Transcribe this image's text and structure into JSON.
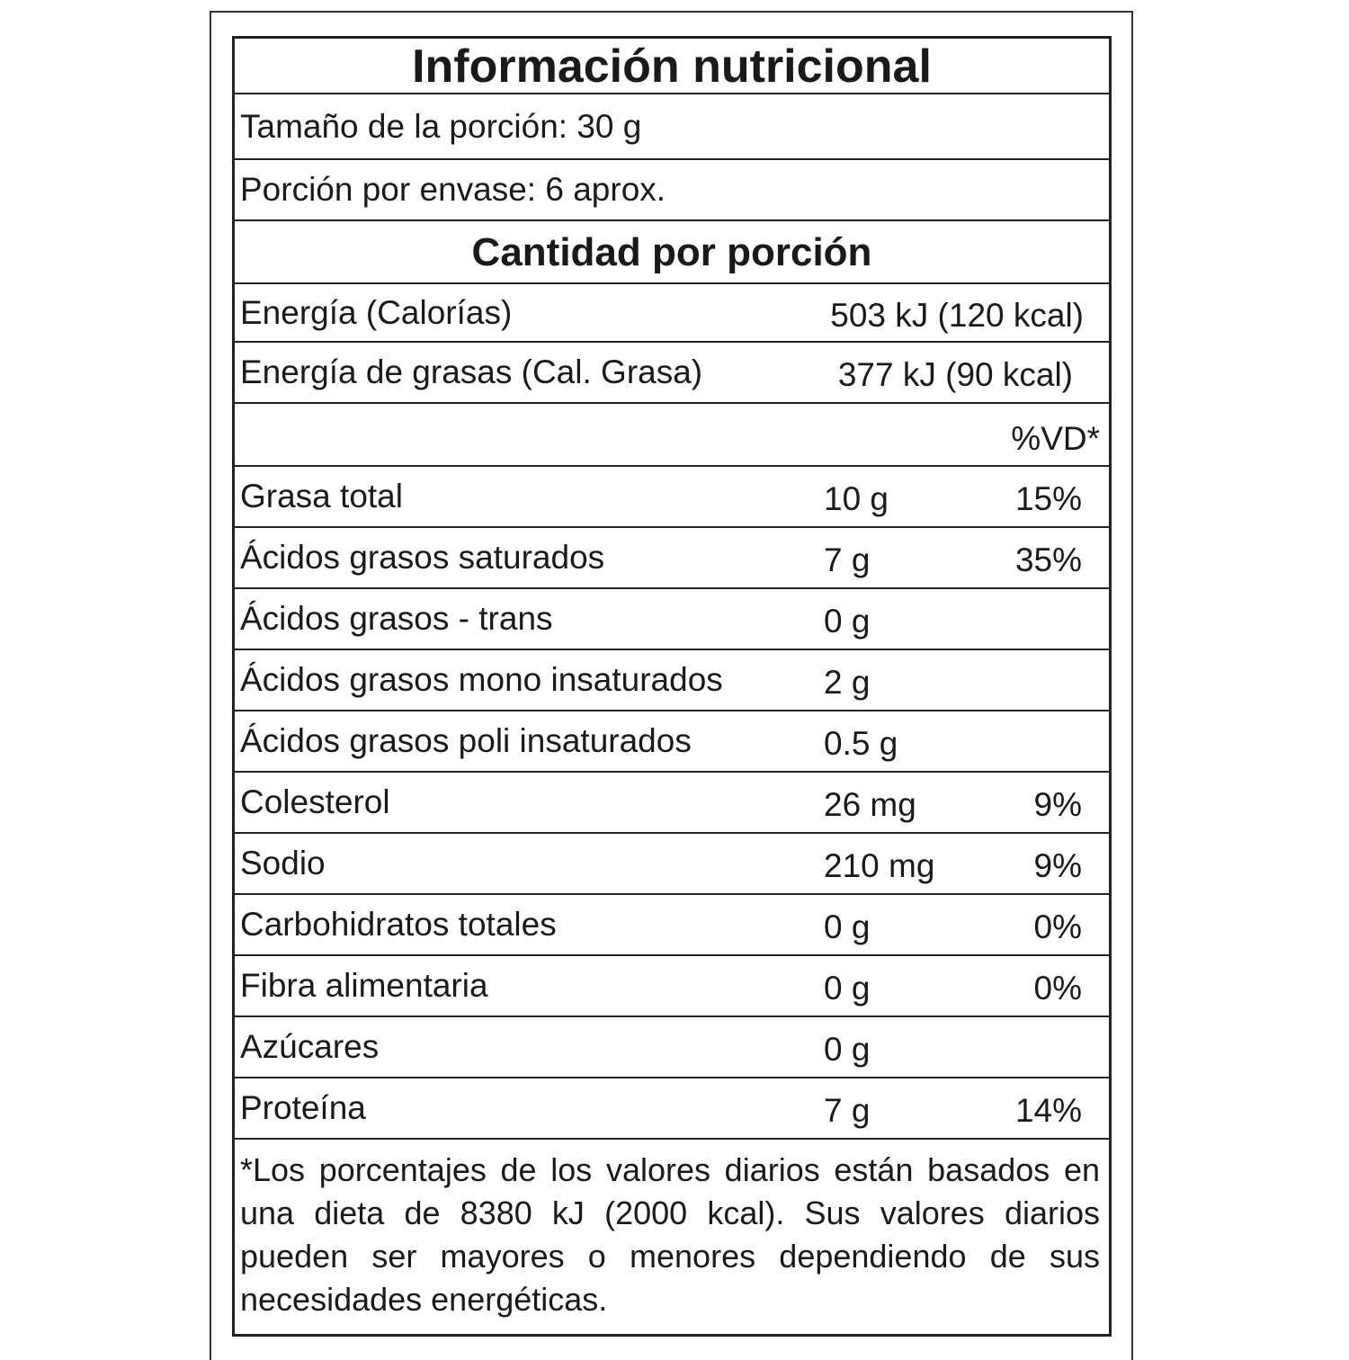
{
  "title": "Información nutricional",
  "serving_size": "Tamaño de la porción: 30 g",
  "servings_per_container": "Porción por envase: 6 aprox.",
  "amount_per_serving": "Cantidad por porción",
  "energy": [
    {
      "label": "Energía (Calorías)",
      "value": "503 kJ (120 kcal)"
    },
    {
      "label": "Energía de grasas (Cal. Grasa)",
      "value": "377 kJ (90 kcal)"
    }
  ],
  "dv_header": "%VD*",
  "nutrients": [
    {
      "label": "Grasa total",
      "amount": "10 g",
      "dv": "15%"
    },
    {
      "label": "Ácidos grasos saturados",
      "amount": "7 g",
      "dv": "35%"
    },
    {
      "label": "Ácidos grasos - trans",
      "amount": "0 g",
      "dv": ""
    },
    {
      "label": "Ácidos grasos mono insaturados",
      "amount": "2 g",
      "dv": ""
    },
    {
      "label": "Ácidos grasos poli insaturados",
      "amount": "0.5 g",
      "dv": ""
    },
    {
      "label": "Colesterol",
      "amount": "26 mg",
      "dv": "9%"
    },
    {
      "label": "Sodio",
      "amount": "210 mg",
      "dv": "9%"
    },
    {
      "label": "Carbohidratos totales",
      "amount": "0 g",
      "dv": "0%"
    },
    {
      "label": "Fibra alimentaria",
      "amount": "0 g",
      "dv": "0%"
    },
    {
      "label": "Azúcares",
      "amount": "0 g",
      "dv": ""
    },
    {
      "label": "Proteína",
      "amount": "7 g",
      "dv": "14%"
    }
  ],
  "footnote": "*Los porcentajes de los valores diarios están basados en una dieta de 8380 kJ (2000 kcal). Sus valores diarios pueden ser mayores o menores dependiendo de sus necesidades energéticas."
}
